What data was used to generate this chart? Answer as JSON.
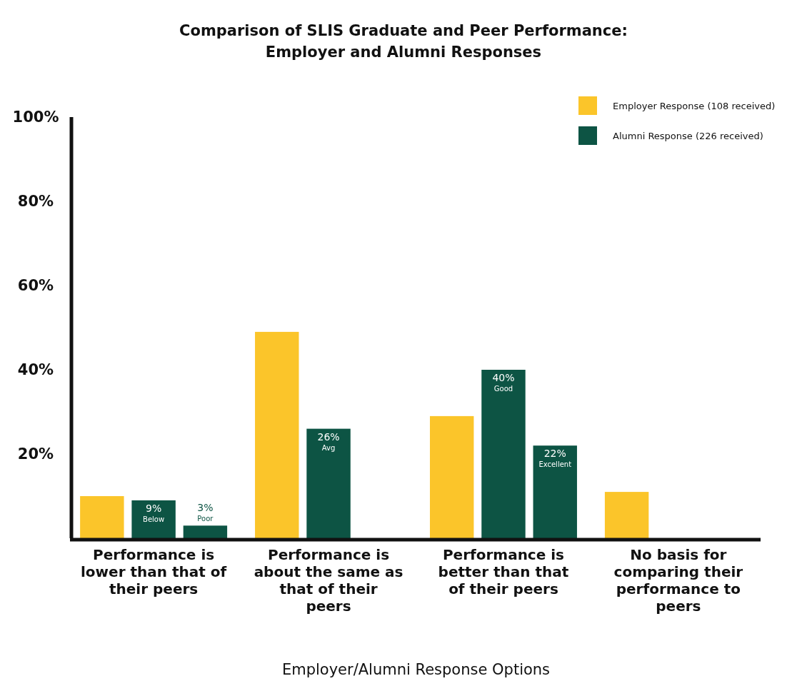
{
  "chart_data": {
    "type": "bar",
    "title": "Comparison of SLIS Graduate and Peer Performance:\nEmployer and Alumni Responses",
    "xlabel": "Employer/Alumni Response Options",
    "categories": [
      "Performance is lower than that of their peers",
      "Performance is about the same as that of their peers",
      "Performance is better than that of their peers",
      "No basis for comparing their performance to peers"
    ],
    "series": [
      {
        "name": "Employer Response (108 received)",
        "color": "#fbc52a",
        "values": [
          10,
          49,
          29,
          11
        ]
      },
      {
        "name": "Alumni Response (226 received)",
        "color": "#0d5444",
        "values": [
          9,
          26,
          40,
          null
        ],
        "value_labels": [
          "9% Below",
          "26% Avg",
          "40% Good",
          null
        ]
      },
      {
        "color": "#0d5444",
        "values": [
          3,
          null,
          22,
          null
        ],
        "value_labels": [
          "3% Poor",
          null,
          "22% Excellent",
          null
        ]
      }
    ],
    "ylim": [
      0,
      100
    ],
    "yticks": [
      {
        "value": 20,
        "label": "20%"
      },
      {
        "value": 40,
        "label": "40%"
      },
      {
        "value": 60,
        "label": "60%"
      },
      {
        "value": 80,
        "label": "80%"
      },
      {
        "value": 100,
        "label": "100%"
      }
    ],
    "legend": "top right"
  }
}
